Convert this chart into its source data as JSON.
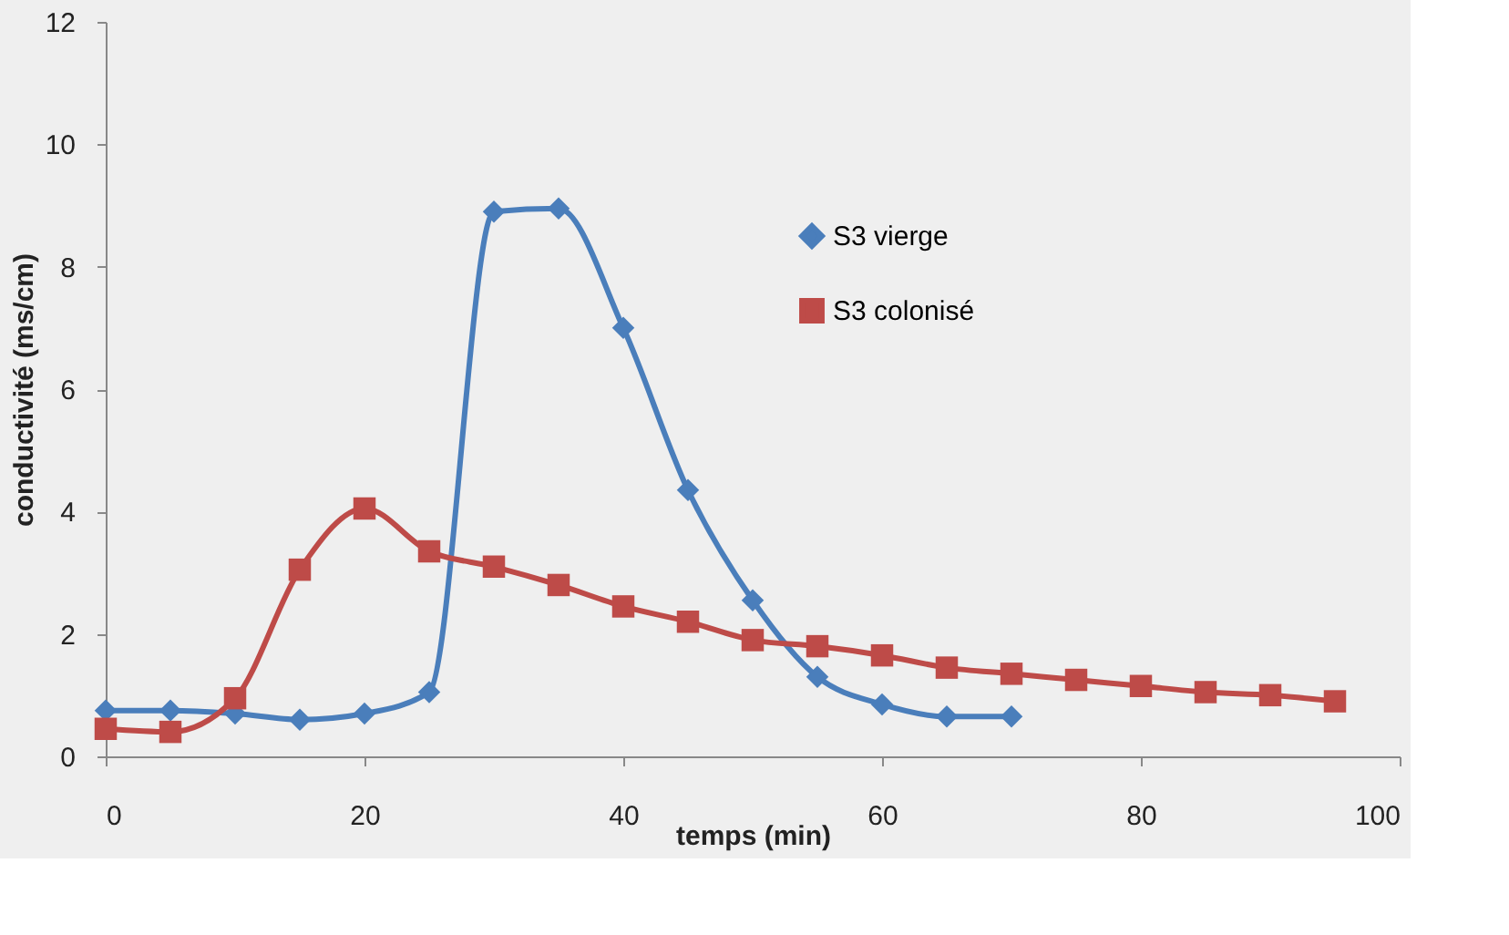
{
  "chart_data": {
    "type": "line",
    "xlabel": "temps (min)",
    "ylabel": "conductivité (ms/cm)",
    "xlim": [
      0,
      100
    ],
    "xticks": [
      0,
      20,
      40,
      60,
      80,
      100
    ],
    "ylim": [
      0,
      12
    ],
    "yticks": [
      0,
      2,
      4,
      6,
      8,
      10,
      12
    ],
    "grid": false,
    "legend": "right",
    "series": [
      {
        "name": "S3 vierge",
        "color": "#4a7ebb",
        "marker": "diamond",
        "x": [
          0,
          5,
          10,
          15,
          20,
          25,
          30,
          35,
          40,
          45,
          50,
          55,
          60,
          65,
          70
        ],
        "values": [
          0.75,
          0.75,
          0.7,
          0.6,
          0.7,
          1.05,
          8.9,
          8.95,
          7.0,
          4.35,
          2.55,
          1.3,
          0.85,
          0.65,
          0.65
        ]
      },
      {
        "name": "S3 colonisé",
        "color": "#be4b48",
        "marker": "square",
        "x": [
          0,
          5,
          10,
          15,
          20,
          25,
          30,
          35,
          40,
          45,
          50,
          55,
          60,
          65,
          70,
          75,
          80,
          85,
          90,
          95
        ],
        "values": [
          0.45,
          0.4,
          0.95,
          3.05,
          4.05,
          3.35,
          3.1,
          2.8,
          2.45,
          2.2,
          1.9,
          1.8,
          1.65,
          1.45,
          1.35,
          1.25,
          1.15,
          1.05,
          1.0,
          0.9
        ]
      }
    ]
  }
}
